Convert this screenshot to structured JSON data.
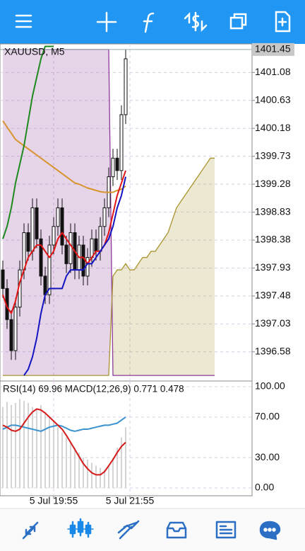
{
  "chart_data": [
    {
      "type": "candlestick",
      "title": "XAUUSD, M5",
      "categories": [
        null,
        null,
        null,
        null,
        null,
        null,
        null,
        null,
        null,
        null,
        null,
        null,
        "5 Jul 19:55",
        null,
        null,
        null,
        null,
        null,
        null,
        null,
        null,
        null,
        null,
        null,
        null,
        null,
        null,
        null,
        null,
        null,
        "5 Jul 21:55",
        null,
        null,
        null,
        null,
        null,
        null,
        null,
        null,
        null,
        null,
        null,
        null,
        null,
        null,
        null,
        null,
        null,
        null,
        null,
        null
      ],
      "open": [
        1397.9,
        1397.6,
        1397.1,
        1396.6,
        1397.3,
        1397.9,
        1398.5,
        1398.2,
        1398.9,
        1398.4,
        1397.8,
        1397.5,
        1398.3,
        1398.6,
        1398.9,
        1398.3,
        1398.0,
        1398.5,
        1397.9,
        1398.3,
        1397.8,
        1398.1,
        1398.4,
        1398.2,
        1398.6,
        1398.9,
        1399.4,
        1399.7,
        1399.5,
        1400.4,
        null,
        null,
        null,
        null,
        null,
        null,
        null,
        null,
        null,
        null,
        null,
        null,
        null,
        null,
        null,
        null,
        null,
        null,
        null,
        null,
        null
      ],
      "high": [
        1398.05,
        1397.75,
        1397.25,
        1397.45,
        1398.05,
        1398.65,
        1398.65,
        1399.05,
        1399.05,
        1398.55,
        1397.95,
        1398.45,
        1398.75,
        1399.05,
        1399.05,
        1398.45,
        1398.65,
        1398.65,
        1398.45,
        1398.45,
        1398.25,
        1398.55,
        1398.55,
        1398.75,
        1399.05,
        1399.55,
        1399.85,
        1399.85,
        1400.55,
        1401.45,
        null,
        null,
        null,
        null,
        null,
        null,
        null,
        null,
        null,
        null,
        null,
        null,
        null,
        null,
        null,
        null,
        null,
        null,
        null,
        null,
        null
      ],
      "low": [
        1397.45,
        1396.95,
        1396.45,
        1396.45,
        1397.15,
        1397.75,
        1398.05,
        1398.05,
        1398.25,
        1397.65,
        1397.35,
        1397.35,
        1398.15,
        1398.45,
        1398.15,
        1397.85,
        1397.85,
        1397.75,
        1397.75,
        1397.65,
        1397.65,
        1397.95,
        1398.05,
        1398.05,
        1398.45,
        1398.75,
        1399.25,
        1399.35,
        1399.35,
        1400.25,
        null,
        null,
        null,
        null,
        null,
        null,
        null,
        null,
        null,
        null,
        null,
        null,
        null,
        null,
        null,
        null,
        null,
        null,
        null,
        null,
        null
      ],
      "close": [
        1397.6,
        1397.1,
        1396.6,
        1397.3,
        1397.9,
        1398.5,
        1398.2,
        1398.9,
        1398.4,
        1397.8,
        1397.5,
        1398.3,
        1398.6,
        1398.9,
        1398.3,
        1398.0,
        1398.5,
        1397.9,
        1398.3,
        1397.8,
        1398.1,
        1398.4,
        1398.2,
        1398.6,
        1398.9,
        1399.4,
        1399.7,
        1399.5,
        1400.4,
        1401.3,
        null,
        null,
        null,
        null,
        null,
        null,
        null,
        null,
        null,
        null,
        null,
        null,
        null,
        null,
        null,
        null,
        null,
        null,
        null,
        null,
        null
      ],
      "cloud": {
        "colors": [
          "#8e3a9a",
          "#a8942e"
        ],
        "span_a": [
          1401.45,
          1401.45,
          1401.45,
          1401.45,
          1401.45,
          1401.45,
          1401.45,
          1401.45,
          1401.45,
          1401.45,
          1401.45,
          1401.45,
          1401.45,
          1401.45,
          1401.45,
          1401.45,
          1401.45,
          1401.45,
          1401.45,
          1401.45,
          1401.45,
          1401.45,
          1401.45,
          1401.45,
          1401.45,
          1401.45,
          1396.2,
          1396.2,
          1396.2,
          1396.2,
          1396.2,
          1396.2,
          1396.2,
          1396.2,
          1396.2,
          1396.2,
          1396.2,
          1396.2,
          1396.2,
          1396.2,
          1396.2,
          1396.2,
          1396.2,
          1396.2,
          1396.2,
          1396.2,
          1396.2,
          1396.2,
          1396.2,
          1396.2,
          1396.2
        ],
        "span_b": [
          1396.2,
          1396.2,
          1396.2,
          1396.2,
          1396.2,
          1396.2,
          1396.2,
          1396.2,
          1396.2,
          1396.2,
          1396.2,
          1396.2,
          1396.2,
          1396.2,
          1396.2,
          1396.2,
          1396.2,
          1396.2,
          1396.2,
          1396.2,
          1396.2,
          1396.2,
          1396.2,
          1396.2,
          1396.2,
          1396.2,
          1397.8,
          1397.9,
          1397.9,
          1398.0,
          1397.9,
          1397.9,
          1398.0,
          1398.1,
          1398.1,
          1398.2,
          1398.2,
          1398.3,
          1398.4,
          1398.5,
          1398.7,
          1398.9,
          1399.0,
          1399.1,
          1399.2,
          1399.3,
          1399.4,
          1399.5,
          1399.6,
          1399.7,
          1399.7
        ]
      },
      "series": [
        {
          "color": "#d8952e",
          "values": [
            1400.3,
            1400.2,
            1400.1,
            1400.0,
            1399.95,
            1399.9,
            1399.85,
            1399.8,
            1399.75,
            1399.7,
            1399.65,
            1399.6,
            1399.55,
            1399.5,
            1399.45,
            1399.4,
            1399.35,
            1399.3,
            1399.28,
            1399.25,
            1399.22,
            1399.2,
            1399.18,
            1399.16,
            1399.15,
            1399.15,
            1399.15,
            1399.18,
            1399.2,
            1399.25,
            null,
            null,
            null,
            null,
            null,
            null,
            null,
            null,
            null,
            null,
            null,
            null,
            null,
            null,
            null,
            null,
            null,
            null,
            null,
            null,
            null
          ]
        },
        {
          "color": "#1e8a1e",
          "values": [
            1398.4,
            1398.6,
            1398.9,
            1399.3,
            1399.6,
            1399.9,
            1400.3,
            1400.7,
            1401.0,
            1401.3,
            1401.5,
            1401.5,
            1401.5,
            null,
            null,
            null,
            null,
            null,
            null,
            null,
            null,
            null,
            null,
            null,
            null,
            null,
            null,
            null,
            null,
            null,
            null,
            null,
            null,
            null,
            null,
            null,
            null,
            null,
            null,
            null,
            null,
            null,
            null,
            null,
            null,
            null,
            null,
            null,
            null,
            null,
            null
          ]
        },
        {
          "color": "#e01414",
          "values": [
            1397.5,
            1397.3,
            1397.2,
            1397.4,
            1397.7,
            1397.9,
            1398.1,
            1398.2,
            1398.3,
            1398.3,
            1398.2,
            1398.1,
            1398.2,
            1398.4,
            1398.5,
            1398.4,
            1398.3,
            1398.2,
            1398.1,
            1398.1,
            1398.0,
            1398.1,
            1398.2,
            1398.2,
            1398.3,
            1398.5,
            1398.8,
            1399.1,
            1399.3,
            1399.5,
            null,
            null,
            null,
            null,
            null,
            null,
            null,
            null,
            null,
            null,
            null,
            null,
            null,
            null,
            null,
            null,
            null,
            null,
            null,
            null,
            null
          ]
        },
        {
          "color": "#1414c0",
          "values": [
            null,
            null,
            null,
            null,
            null,
            1396.2,
            1396.3,
            1396.5,
            1396.8,
            1397.2,
            1397.5,
            1397.6,
            1397.6,
            1397.6,
            1397.6,
            1397.8,
            1397.9,
            1397.9,
            1397.9,
            1397.9,
            1398.0,
            1398.0,
            1398.1,
            1398.2,
            1398.3,
            1398.4,
            1398.6,
            1398.9,
            1399.1,
            1399.4,
            null,
            null,
            null,
            null,
            null,
            null,
            null,
            null,
            null,
            null,
            null,
            null,
            null,
            null,
            null,
            null,
            null,
            null,
            null,
            null,
            null
          ]
        }
      ],
      "ylim": [
        1396.11,
        1401.54
      ],
      "yticks": [
        1396.58,
        1397.03,
        1397.48,
        1397.93,
        1398.38,
        1398.83,
        1399.28,
        1399.73,
        1400.18,
        1400.63,
        1401.08
      ],
      "current_price": 1401.45,
      "grid": true
    },
    {
      "type": "indicator",
      "title": "RSI(14) 69.96 MACD(12,26,9) 0.771 0.478",
      "ylim": [
        -7.7,
        105.6
      ],
      "yticks": [
        {
          "value": 0,
          "label": "0.00"
        },
        {
          "value": 30,
          "label": "30.00"
        },
        {
          "value": 70,
          "label": "70.00"
        },
        {
          "value": 100,
          "label": "100.00"
        }
      ],
      "bars": {
        "color": "#d4d4d4",
        "values": [
          80,
          85,
          82,
          84,
          88,
          86,
          84,
          80,
          78,
          82,
          75,
          70,
          65,
          60,
          55,
          50,
          45,
          40,
          35,
          30,
          28,
          25,
          22,
          20,
          18,
          22,
          30,
          40,
          50,
          60,
          null,
          null,
          null,
          null,
          null,
          null,
          null,
          null,
          null,
          null,
          null,
          null,
          null,
          null,
          null,
          null,
          null,
          null,
          null,
          null,
          null
        ]
      },
      "series": [
        {
          "color": "#3a93cf",
          "values": [
            58,
            60,
            62,
            62,
            61,
            60,
            59,
            58,
            57,
            56,
            58,
            60,
            61,
            62,
            61,
            59,
            57,
            56,
            57,
            58,
            58,
            59,
            60,
            61,
            62,
            62,
            63,
            64,
            67,
            70,
            null,
            null,
            null,
            null,
            null,
            null,
            null,
            null,
            null,
            null,
            null,
            null,
            null,
            null,
            null,
            null,
            null,
            null,
            null,
            null,
            null
          ]
        },
        {
          "color": "#d41a1a",
          "values": [
            62,
            60,
            57,
            56,
            58,
            64,
            70,
            75,
            78,
            77,
            74,
            70,
            66,
            62,
            58,
            52,
            45,
            38,
            31,
            24,
            19,
            15,
            13,
            13,
            16,
            22,
            28,
            35,
            41,
            45,
            null,
            null,
            null,
            null,
            null,
            null,
            null,
            null,
            null,
            null,
            null,
            null,
            null,
            null,
            null,
            null,
            null,
            null,
            null,
            null,
            null
          ]
        }
      ],
      "grid": true
    }
  ]
}
